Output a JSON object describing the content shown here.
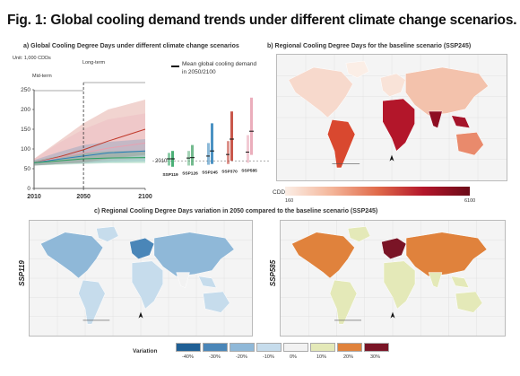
{
  "figure_title": "Fig. 1: Global cooling demand trends under different climate change scenarios.",
  "panel_a": {
    "title": "a) Global Cooling Degree Days under different climate change scenarios",
    "unit": "Unit: 1,000 CDDs",
    "mid_term_label": "Mid-term",
    "long_term_label": "Long-term",
    "legend_label_line1": "Mean global cooling demand",
    "legend_label_line2": "in 2050/2100",
    "baseline_2010_label": "2010"
  },
  "panel_b": {
    "title": "b) Regional Cooling Degree Days for the baseline scenario (SSP245)",
    "colorbar_label": "CDD",
    "colorbar_min": "160",
    "colorbar_max": "6100"
  },
  "panel_c": {
    "title": "c) Regional Cooling Degree Days variation in 2050 compared to the baseline scenario (SSP245)",
    "left_map_label": "SSP119",
    "right_map_label": "SSP585",
    "legend_title": "Variation",
    "legend_items": [
      {
        "label": "-40%",
        "color": "#1f5f95"
      },
      {
        "label": "-30%",
        "color": "#4a86b8"
      },
      {
        "label": "-20%",
        "color": "#8fb8d8"
      },
      {
        "label": "-10%",
        "color": "#c6dcec"
      },
      {
        "label": "0%",
        "color": "#f2f2f2"
      },
      {
        "label": "10%",
        "color": "#e4e9b8"
      },
      {
        "label": "20%",
        "color": "#e0823c"
      },
      {
        "label": "30%",
        "color": "#7a1426"
      }
    ]
  },
  "chart_data": [
    {
      "type": "area",
      "title": "a) Global Cooling Degree Days under different climate change scenarios",
      "ylabel": "Unit: 1,000 CDDs",
      "xlim": [
        2010,
        2100
      ],
      "ylim": [
        0,
        250
      ],
      "x_ticks": [
        2010,
        2050,
        2100
      ],
      "y_ticks": [
        0,
        50,
        100,
        150,
        200,
        250
      ],
      "x": [
        2010,
        2030,
        2050,
        2070,
        2100
      ],
      "series": [
        {
          "color": "#c0392b",
          "mean": [
            65,
            80,
            98,
            120,
            150
          ],
          "low": [
            58,
            62,
            66,
            75,
            85
          ],
          "high": [
            75,
            120,
            165,
            200,
            225
          ]
        },
        {
          "color": "#e8a0b0",
          "mean": [
            65,
            78,
            90,
            102,
            115
          ],
          "low": [
            58,
            62,
            64,
            70,
            75
          ],
          "high": [
            75,
            115,
            150,
            175,
            190
          ]
        },
        {
          "color": "#2c7fb8",
          "mean": [
            65,
            74,
            82,
            90,
            95
          ],
          "low": [
            58,
            62,
            64,
            66,
            68
          ],
          "high": [
            72,
            92,
            110,
            118,
            125
          ]
        },
        {
          "color": "#2ca25f",
          "mean": [
            65,
            70,
            75,
            77,
            78
          ],
          "low": [
            58,
            60,
            62,
            64,
            64
          ],
          "high": [
            70,
            82,
            90,
            94,
            96
          ]
        }
      ]
    },
    {
      "type": "bar",
      "title": "Mean global cooling demand in 2050/2100",
      "categories": [
        "SSP119",
        "SSP126",
        "SSP245",
        "SSP370",
        "SSP585"
      ],
      "ylim": [
        0,
        250
      ],
      "baseline": 70,
      "range_2050": [
        [
          58,
          90
        ],
        [
          58,
          95
        ],
        [
          60,
          115
        ],
        [
          62,
          120
        ],
        [
          65,
          135
        ]
      ],
      "range_2100": [
        [
          55,
          95
        ],
        [
          58,
          110
        ],
        [
          62,
          165
        ],
        [
          70,
          195
        ],
        [
          85,
          230
        ]
      ],
      "mean_2050": [
        75,
        77,
        82,
        86,
        92
      ],
      "mean_2100": [
        75,
        78,
        95,
        125,
        145
      ],
      "colors": [
        "#2ca25f",
        "#5aae7a",
        "#2c7fb8",
        "#c0392b",
        "#e8a0b0"
      ]
    },
    {
      "type": "heatmap",
      "title": "b) Regional Cooling Degree Days for the baseline scenario (SSP245)",
      "colorbar_label": "CDD",
      "range": [
        160,
        6100
      ]
    }
  ]
}
